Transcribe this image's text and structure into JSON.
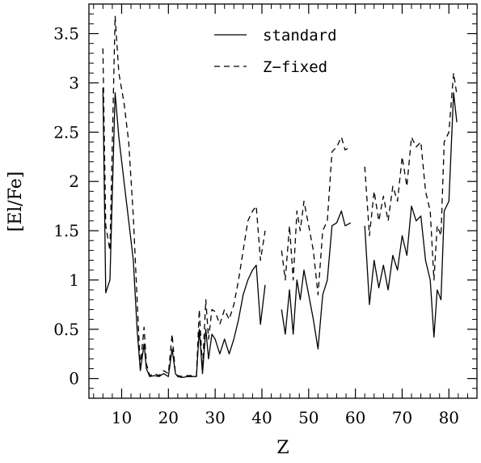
{
  "chart_data": {
    "type": "line",
    "xlabel": "Z",
    "ylabel": "[El/Fe]",
    "xlim": [
      3,
      86
    ],
    "ylim": [
      -0.2,
      3.8
    ],
    "x_ticks": [
      10,
      20,
      30,
      40,
      50,
      60,
      70,
      80
    ],
    "y_ticks": [
      0,
      0.5,
      1,
      1.5,
      2,
      2.5,
      3,
      3.5
    ],
    "x_tick_labels": [
      "10",
      "20",
      "30",
      "40",
      "50",
      "60",
      "70",
      "80"
    ],
    "y_tick_labels": [
      "0",
      "0.5",
      "1",
      "1.5",
      "2",
      "2.5",
      "3",
      "3.5"
    ],
    "legend": {
      "position": "top-center"
    },
    "series": [
      {
        "name": "standard",
        "style": "solid",
        "segments": [
          [
            [
              6,
              2.95
            ],
            [
              6.6,
              0.87
            ],
            [
              7.5,
              1.0
            ],
            [
              8.6,
              2.9
            ],
            [
              9.4,
              2.45
            ],
            [
              10.5,
              2.0
            ],
            [
              11.5,
              1.6
            ],
            [
              12.5,
              1.2
            ],
            [
              13.3,
              0.5
            ],
            [
              14,
              0.08
            ],
            [
              14.8,
              0.35
            ],
            [
              15.3,
              0.1
            ],
            [
              16,
              0.02
            ],
            [
              17,
              0.03
            ],
            [
              18,
              0.02
            ],
            [
              19,
              0.05
            ],
            [
              20,
              0.02
            ],
            [
              20.8,
              0.3
            ],
            [
              21.5,
              0.05
            ],
            [
              22,
              0.02
            ],
            [
              23,
              0.01
            ],
            [
              24,
              0.02
            ],
            [
              25,
              0.02
            ],
            [
              26,
              0.02
            ],
            [
              26.6,
              0.5
            ],
            [
              27.3,
              0.05
            ],
            [
              28,
              0.5
            ],
            [
              28.6,
              0.2
            ],
            [
              29.3,
              0.45
            ],
            [
              30,
              0.4
            ],
            [
              31,
              0.25
            ],
            [
              32,
              0.4
            ],
            [
              33,
              0.25
            ],
            [
              34,
              0.4
            ],
            [
              35,
              0.6
            ],
            [
              36,
              0.85
            ],
            [
              37,
              1.0
            ],
            [
              38,
              1.1
            ],
            [
              38.8,
              1.15
            ],
            [
              39.7,
              0.55
            ],
            [
              40.7,
              0.95
            ]
          ],
          [
            [
              44.2,
              0.7
            ],
            [
              45,
              0.45
            ],
            [
              45.9,
              0.9
            ],
            [
              46.7,
              0.45
            ],
            [
              47.5,
              1.0
            ],
            [
              48.2,
              0.8
            ],
            [
              49,
              1.1
            ],
            [
              49.8,
              0.9
            ],
            [
              51,
              0.6
            ],
            [
              52,
              0.3
            ],
            [
              53,
              0.85
            ],
            [
              54,
              1.0
            ],
            [
              55,
              1.55
            ],
            [
              56,
              1.58
            ],
            [
              57,
              1.7
            ],
            [
              57.8,
              1.55
            ],
            [
              59,
              1.58
            ]
          ],
          [
            [
              62,
              1.55
            ],
            [
              63,
              0.75
            ],
            [
              64,
              1.2
            ],
            [
              65,
              0.92
            ],
            [
              66,
              1.15
            ],
            [
              67,
              0.9
            ],
            [
              68,
              1.25
            ],
            [
              69,
              1.1
            ],
            [
              70,
              1.45
            ],
            [
              71,
              1.25
            ],
            [
              72,
              1.75
            ],
            [
              73,
              1.6
            ],
            [
              74,
              1.65
            ],
            [
              75,
              1.2
            ],
            [
              76,
              1.0
            ],
            [
              76.8,
              0.42
            ],
            [
              77.5,
              0.9
            ],
            [
              78.3,
              0.8
            ],
            [
              79,
              1.7
            ],
            [
              80,
              1.8
            ],
            [
              81,
              2.9
            ],
            [
              81.7,
              2.6
            ]
          ]
        ]
      },
      {
        "name": "Z−fixed",
        "style": "dashed",
        "segments": [
          [
            [
              6,
              3.35
            ],
            [
              6.6,
              1.55
            ],
            [
              7.5,
              1.3
            ],
            [
              8.6,
              3.68
            ],
            [
              9.4,
              3.1
            ],
            [
              10.5,
              2.8
            ],
            [
              11.5,
              2.4
            ],
            [
              12.5,
              1.65
            ],
            [
              13.3,
              0.8
            ],
            [
              14,
              0.12
            ],
            [
              14.8,
              0.52
            ],
            [
              15.3,
              0.15
            ],
            [
              16,
              0.03
            ],
            [
              17,
              0.05
            ],
            [
              18,
              0.03
            ],
            [
              19,
              0.08
            ],
            [
              20,
              0.05
            ],
            [
              20.8,
              0.45
            ],
            [
              21.5,
              0.05
            ],
            [
              22,
              0.03
            ],
            [
              23,
              0.02
            ],
            [
              24,
              0.03
            ],
            [
              25,
              0.03
            ],
            [
              26,
              0.03
            ],
            [
              26.6,
              0.7
            ],
            [
              27.3,
              0.1
            ],
            [
              28,
              0.8
            ],
            [
              28.6,
              0.4
            ],
            [
              29.3,
              0.7
            ],
            [
              30,
              0.68
            ],
            [
              31,
              0.55
            ],
            [
              32,
              0.7
            ],
            [
              33,
              0.6
            ],
            [
              34,
              0.75
            ],
            [
              35,
              1.0
            ],
            [
              36,
              1.3
            ],
            [
              37,
              1.6
            ],
            [
              38,
              1.7
            ],
            [
              38.8,
              1.75
            ],
            [
              39.7,
              1.2
            ],
            [
              40.7,
              1.5
            ]
          ],
          [
            [
              44.2,
              1.3
            ],
            [
              45,
              1.0
            ],
            [
              45.9,
              1.55
            ],
            [
              46.7,
              1.0
            ],
            [
              47.5,
              1.7
            ],
            [
              48.2,
              1.5
            ],
            [
              49,
              1.8
            ],
            [
              49.8,
              1.6
            ],
            [
              51,
              1.3
            ],
            [
              52,
              0.85
            ],
            [
              53,
              1.5
            ],
            [
              54,
              1.6
            ],
            [
              55,
              2.3
            ],
            [
              56,
              2.35
            ],
            [
              57,
              2.45
            ],
            [
              57.8,
              2.32
            ],
            [
              59,
              2.35
            ]
          ],
          [
            [
              62,
              2.15
            ],
            [
              63,
              1.45
            ],
            [
              64,
              1.9
            ],
            [
              65,
              1.6
            ],
            [
              66,
              1.85
            ],
            [
              67,
              1.6
            ],
            [
              68,
              1.95
            ],
            [
              69,
              1.8
            ],
            [
              70,
              2.25
            ],
            [
              71,
              1.95
            ],
            [
              72,
              2.45
            ],
            [
              73,
              2.35
            ],
            [
              74,
              2.4
            ],
            [
              75,
              1.9
            ],
            [
              76,
              1.7
            ],
            [
              76.8,
              1.0
            ],
            [
              77.5,
              1.55
            ],
            [
              78.3,
              1.45
            ],
            [
              79,
              2.4
            ],
            [
              80,
              2.5
            ],
            [
              81,
              3.1
            ],
            [
              81.7,
              2.88
            ]
          ]
        ]
      }
    ]
  }
}
